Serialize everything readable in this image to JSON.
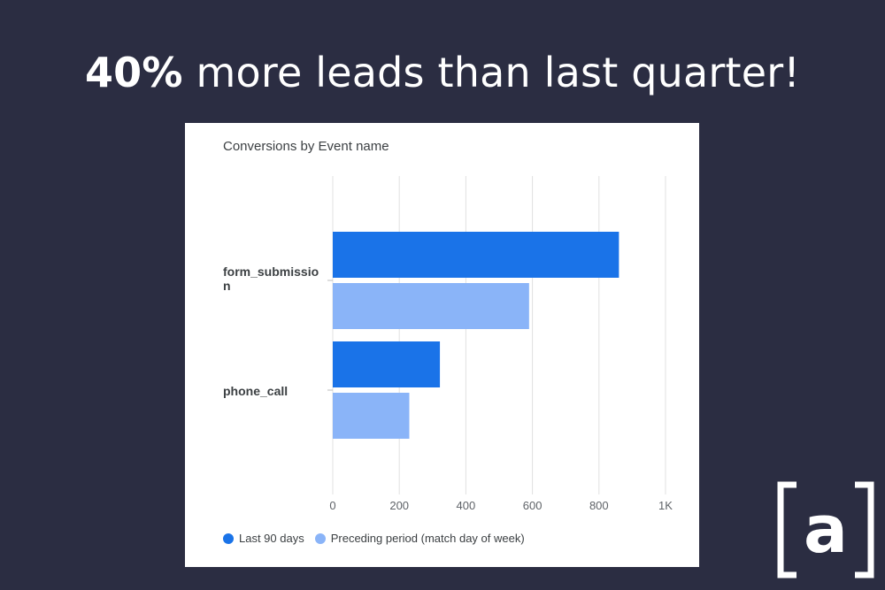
{
  "headline": {
    "bold": "40%",
    "rest": " more leads than last quarter!"
  },
  "colors": {
    "background": "#2b2d42",
    "series_current": "#1a73e8",
    "series_previous": "#8ab4f8",
    "grid": "#e0e0e0",
    "logo": "#ffffff"
  },
  "logo": {
    "icon": "bracket-a-logo-icon",
    "letter": "a"
  },
  "chart_data": {
    "type": "bar",
    "orientation": "horizontal",
    "title": "Conversions by Event name",
    "categories": [
      "form_submission",
      "phone_call"
    ],
    "series": [
      {
        "name": "Last 90 days",
        "values": [
          860,
          322
        ]
      },
      {
        "name": "Preceding period (match day of week)",
        "values": [
          590,
          230
        ]
      }
    ],
    "xlim": [
      0,
      1000
    ],
    "ticks": [
      {
        "value": 0,
        "label": "0"
      },
      {
        "value": 200,
        "label": "200"
      },
      {
        "value": 400,
        "label": "400"
      },
      {
        "value": 600,
        "label": "600"
      },
      {
        "value": 800,
        "label": "800"
      },
      {
        "value": 1000,
        "label": "1K"
      }
    ],
    "grid": true,
    "legend_position": "bottom-left"
  }
}
